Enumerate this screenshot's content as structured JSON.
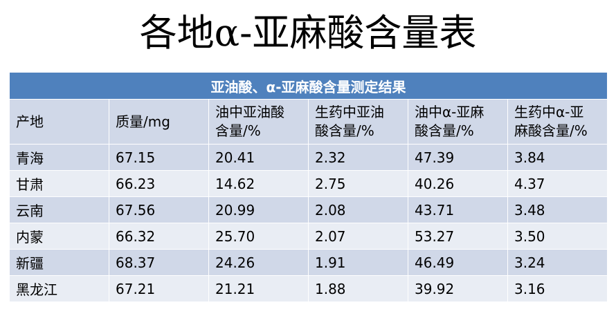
{
  "title": "各地α-亚麻酸含量表",
  "table": {
    "caption": "亚油酸、α-亚麻酸含量测定结果",
    "header": [
      "产地",
      "质量/mg",
      "油中亚油酸\n含量/%",
      "生药中亚油\n酸含量/%",
      "油中α-亚麻\n酸含量/%",
      "生药中α-亚\n麻酸含量/%"
    ],
    "rows": [
      [
        "青海",
        "67.15",
        "20.41",
        "2.32",
        "47.39",
        "3.84"
      ],
      [
        "甘肃",
        "66.23",
        "14.62",
        "2.75",
        "40.26",
        "4.37"
      ],
      [
        "云南",
        "67.56",
        "20.99",
        "2.08",
        "43.71",
        "3.48"
      ],
      [
        "内蒙",
        "66.32",
        "25.70",
        "2.07",
        "53.27",
        "3.50"
      ],
      [
        "新疆",
        "68.37",
        "24.26",
        "1.91",
        "46.49",
        "3.24"
      ],
      [
        "黑龙江",
        "67.21",
        "21.21",
        "1.88",
        "39.92",
        "3.16"
      ]
    ]
  }
}
